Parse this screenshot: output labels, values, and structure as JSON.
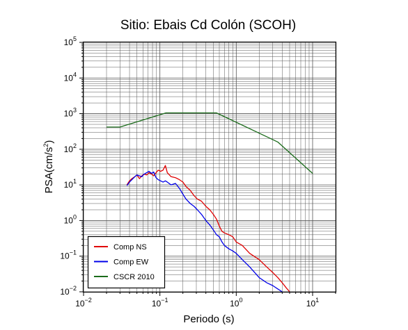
{
  "chart_data": {
    "type": "line",
    "title": "Sitio: Ebais Cd Colón (SCOH)",
    "xlabel": "Periodo (s)",
    "ylabel_prefix": "PSA(cm/s",
    "ylabel_sup": "2",
    "ylabel_suffix": ")",
    "xscale": "log",
    "yscale": "log",
    "xlim": [
      0.01,
      20
    ],
    "ylim": [
      0.01,
      100000
    ],
    "grid": true,
    "legend_position": "bottom-left",
    "x_ticks": [
      {
        "base": "10",
        "exp": "−2",
        "value": 0.01
      },
      {
        "base": "10",
        "exp": "−1",
        "value": 0.1
      },
      {
        "base": "10",
        "exp": "0",
        "value": 1
      },
      {
        "base": "10",
        "exp": "1",
        "value": 10
      }
    ],
    "y_ticks": [
      {
        "base": "10",
        "exp": "−2",
        "value": 0.01
      },
      {
        "base": "10",
        "exp": "−1",
        "value": 0.1
      },
      {
        "base": "10",
        "exp": "0",
        "value": 1
      },
      {
        "base": "10",
        "exp": "1",
        "value": 10
      },
      {
        "base": "10",
        "exp": "2",
        "value": 100
      },
      {
        "base": "10",
        "exp": "3",
        "value": 1000
      },
      {
        "base": "10",
        "exp": "4",
        "value": 10000
      },
      {
        "base": "10",
        "exp": "5",
        "value": 100000
      }
    ],
    "series": [
      {
        "name": "Comp NS",
        "color": "#e00000",
        "points": [
          [
            0.037,
            10
          ],
          [
            0.04,
            13
          ],
          [
            0.043,
            15
          ],
          [
            0.047,
            17
          ],
          [
            0.05,
            19
          ],
          [
            0.054,
            15
          ],
          [
            0.058,
            18
          ],
          [
            0.062,
            20
          ],
          [
            0.067,
            19
          ],
          [
            0.072,
            22
          ],
          [
            0.078,
            20
          ],
          [
            0.083,
            18
          ],
          [
            0.089,
            22
          ],
          [
            0.095,
            26
          ],
          [
            0.102,
            24
          ],
          [
            0.11,
            26
          ],
          [
            0.118,
            35
          ],
          [
            0.125,
            22
          ],
          [
            0.14,
            17
          ],
          [
            0.16,
            16
          ],
          [
            0.18,
            14
          ],
          [
            0.2,
            12
          ],
          [
            0.22,
            9
          ],
          [
            0.25,
            7
          ],
          [
            0.28,
            5
          ],
          [
            0.31,
            4
          ],
          [
            0.35,
            3.5
          ],
          [
            0.4,
            2.5
          ],
          [
            0.45,
            2.0
          ],
          [
            0.5,
            1.5
          ],
          [
            0.55,
            1.1
          ],
          [
            0.6,
            0.7
          ],
          [
            0.65,
            0.5
          ],
          [
            0.7,
            0.45
          ],
          [
            0.8,
            0.4
          ],
          [
            0.9,
            0.35
          ],
          [
            1.0,
            0.25
          ],
          [
            1.2,
            0.2
          ],
          [
            1.5,
            0.12
          ],
          [
            2.0,
            0.08
          ],
          [
            2.5,
            0.05
          ],
          [
            3.0,
            0.035
          ],
          [
            3.5,
            0.025
          ],
          [
            4.0,
            0.018
          ],
          [
            4.5,
            0.013
          ],
          [
            5.0,
            0.01
          ]
        ]
      },
      {
        "name": "Comp EW",
        "color": "#0000e8",
        "points": [
          [
            0.037,
            9.5
          ],
          [
            0.04,
            12
          ],
          [
            0.043,
            14
          ],
          [
            0.047,
            17
          ],
          [
            0.05,
            19
          ],
          [
            0.054,
            18
          ],
          [
            0.058,
            17
          ],
          [
            0.062,
            20
          ],
          [
            0.067,
            22
          ],
          [
            0.072,
            24
          ],
          [
            0.078,
            21
          ],
          [
            0.083,
            23
          ],
          [
            0.089,
            16
          ],
          [
            0.095,
            14
          ],
          [
            0.102,
            13
          ],
          [
            0.11,
            12
          ],
          [
            0.118,
            13
          ],
          [
            0.125,
            12
          ],
          [
            0.14,
            10
          ],
          [
            0.16,
            11
          ],
          [
            0.18,
            8
          ],
          [
            0.2,
            5.5
          ],
          [
            0.22,
            4
          ],
          [
            0.25,
            3
          ],
          [
            0.28,
            2.5
          ],
          [
            0.31,
            2
          ],
          [
            0.35,
            1.5
          ],
          [
            0.4,
            1.0
          ],
          [
            0.45,
            0.75
          ],
          [
            0.5,
            0.55
          ],
          [
            0.55,
            0.4
          ],
          [
            0.6,
            0.35
          ],
          [
            0.65,
            0.25
          ],
          [
            0.7,
            0.2
          ],
          [
            0.8,
            0.16
          ],
          [
            0.9,
            0.14
          ],
          [
            1.0,
            0.12
          ],
          [
            1.2,
            0.08
          ],
          [
            1.5,
            0.05
          ],
          [
            2.0,
            0.025
          ],
          [
            2.5,
            0.018
          ],
          [
            3.0,
            0.015
          ],
          [
            3.5,
            0.012
          ],
          [
            4.0,
            0.01
          ]
        ]
      },
      {
        "name": "CSCR 2010",
        "color": "#1a6b1a",
        "points": [
          [
            0.02,
            420
          ],
          [
            0.03,
            420
          ],
          [
            0.12,
            1050
          ],
          [
            0.55,
            1050
          ],
          [
            3.5,
            160
          ],
          [
            10,
            21
          ]
        ]
      }
    ]
  }
}
